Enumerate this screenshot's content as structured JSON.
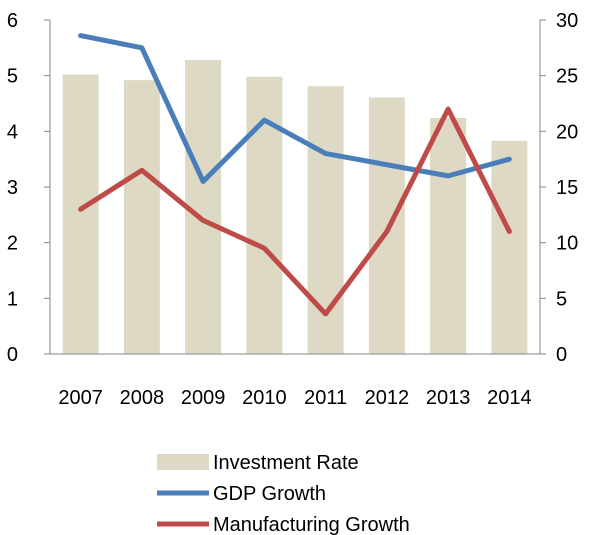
{
  "chart_data": {
    "type": "bar",
    "categories": [
      "2007",
      "2008",
      "2009",
      "2010",
      "2011",
      "2012",
      "2013",
      "2014"
    ],
    "series": [
      {
        "name": "Investment Rate",
        "type": "bar",
        "axis": "left",
        "values": [
          5.02,
          4.92,
          5.28,
          4.98,
          4.81,
          4.61,
          4.24,
          3.83
        ],
        "color": "#ddd9c4"
      },
      {
        "name": "GDP Growth",
        "type": "line",
        "axis": "right",
        "values": [
          28.6,
          27.5,
          15.5,
          21.0,
          18.0,
          17.0,
          16.0,
          17.5
        ],
        "color": "#4a7ebb"
      },
      {
        "name": "Manufacturing Growth",
        "type": "line",
        "axis": "right",
        "values": [
          13.0,
          16.5,
          12.0,
          9.5,
          3.6,
          11.0,
          22.0,
          11.0
        ],
        "color": "#be4b48"
      }
    ],
    "y_left": {
      "min": 0,
      "max": 6,
      "ticks": [
        "0",
        "1",
        "2",
        "3",
        "4",
        "5",
        "6"
      ]
    },
    "y_right": {
      "min": 0,
      "max": 30,
      "ticks": [
        "0",
        "5",
        "10",
        "15",
        "20",
        "25",
        "30"
      ]
    },
    "grid": false,
    "legend_position": "bottom",
    "title": "",
    "xlabel": "",
    "ylabel": ""
  }
}
